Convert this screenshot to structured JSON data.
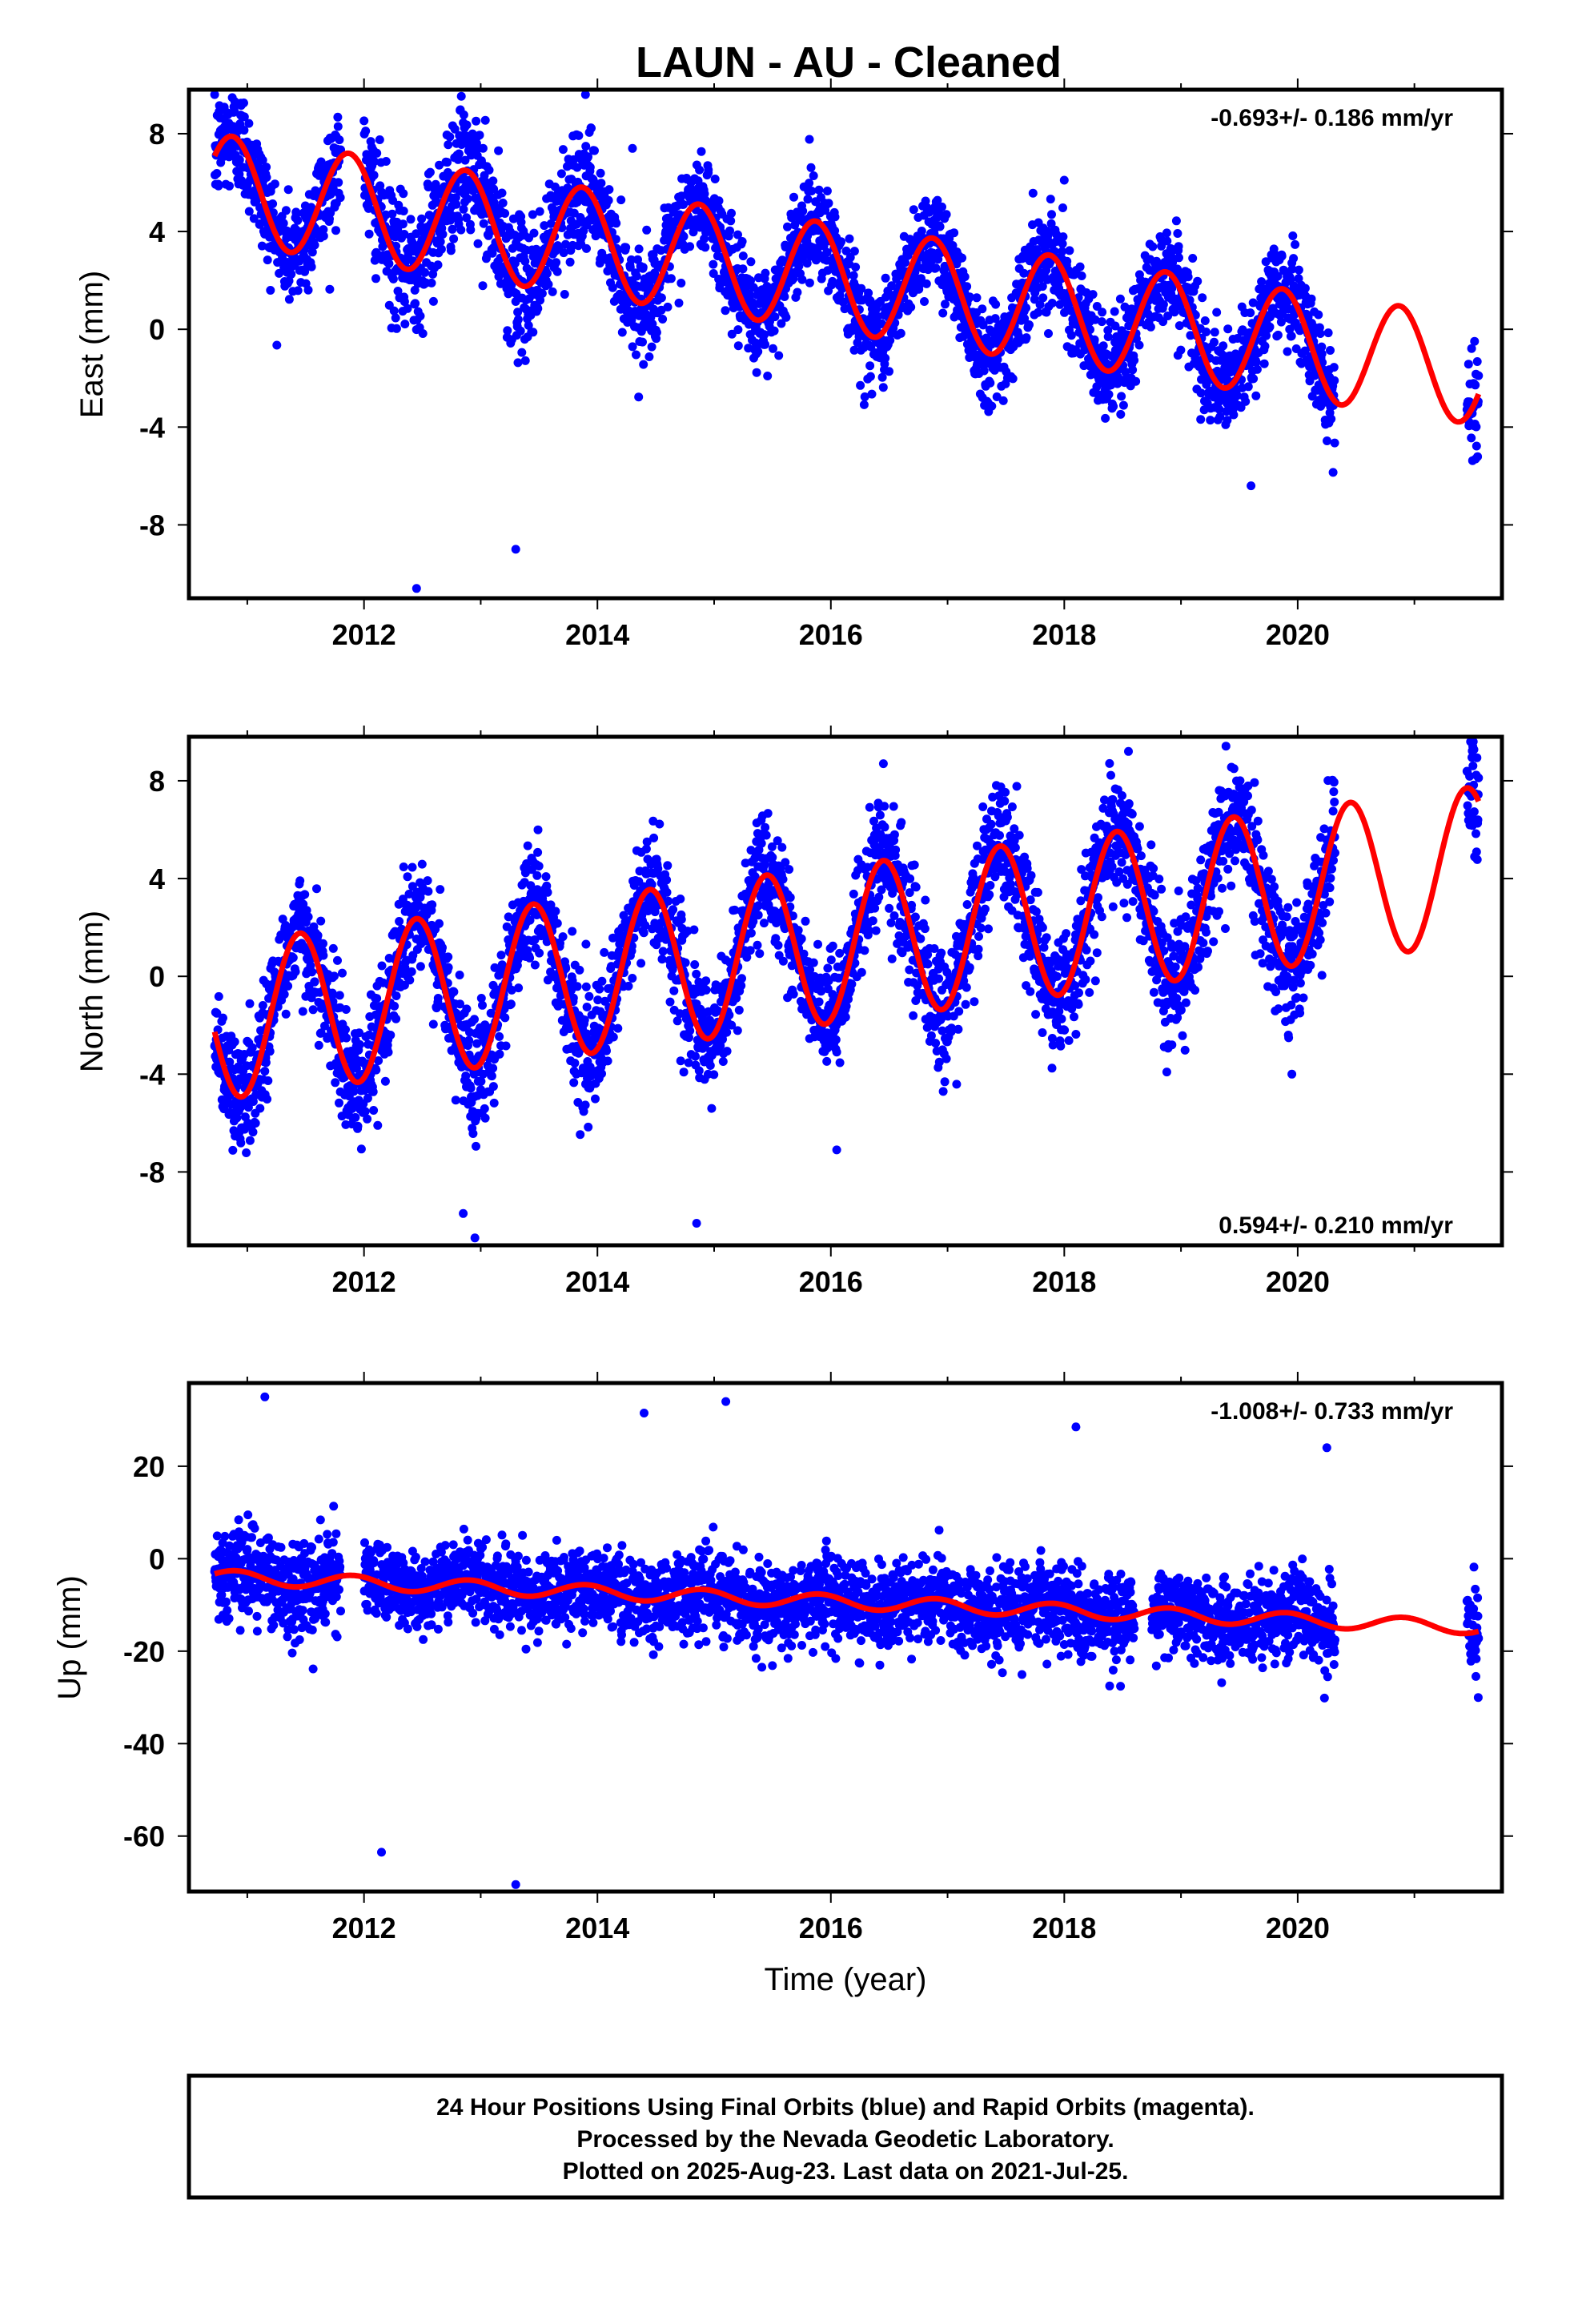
{
  "title": "LAUN  - AU - Cleaned",
  "colors": {
    "observations": "#0000ff",
    "model": "#ff0000",
    "axes": "#000000"
  },
  "caption": [
    "24 Hour Positions Using Final Orbits (blue) and Rapid Orbits (magenta).",
    "Processed by the Nevada Geodetic Laboratory.",
    "Plotted on 2025-Aug-23. Last data on 2021-Jul-25."
  ],
  "chart_data": [
    {
      "type": "scatter",
      "component": "east",
      "ylabel": "East (mm)",
      "xlabel": "",
      "rate_label": "-0.693+/- 0.186 mm/yr",
      "rate_position": "top-right",
      "xlim": [
        2010.5,
        2021.75
      ],
      "ylim": [
        -11.0,
        9.8
      ],
      "xticks": [
        2012,
        2014,
        2016,
        2018,
        2020
      ],
      "yticks": [
        -8,
        -4,
        0,
        4,
        8
      ],
      "series": [
        {
          "kind": "observations",
          "segments": [
            {
              "x0": 2010.72,
              "x1": 2011.8,
              "amp": 2.2,
              "off": -4.8,
              "trend": -0.693,
              "noise": 1.1,
              "gap": 0.0
            },
            {
              "x0": 2012.0,
              "x1": 2013.95,
              "amp": 2.2,
              "off": -10.0,
              "trend": -0.693,
              "noise": 1.3,
              "gap": 0.0
            },
            {
              "x0": 2013.95,
              "x1": 2020.32,
              "amp": 2.2,
              "off": -4.8,
              "trend": -0.693,
              "noise": 1.0,
              "gap": 0.0
            },
            {
              "x0": 2021.45,
              "x1": 2021.55,
              "amp": 2.2,
              "off": -4.8,
              "trend": -0.693,
              "noise": 1.0,
              "gap": 0.0
            }
          ],
          "outliers": [
            [
              2012.45,
              -10.6
            ],
            [
              2013.3,
              -9.0
            ],
            [
              2014.3,
              7.4
            ],
            [
              2018.0,
              6.1
            ],
            [
              2014.95,
              6.4
            ],
            [
              2019.6,
              -6.4
            ]
          ]
        },
        {
          "kind": "model",
          "name": "",
          "amp": 2.2,
          "phase": 2010.87,
          "off": 5.6,
          "trend": -0.693,
          "x0": 2010.72,
          "x1": 2021.55,
          "step": []
        }
      ]
    },
    {
      "type": "scatter",
      "component": "north",
      "ylabel": "North (mm)",
      "xlabel": "",
      "rate_label": "0.594+/- 0.210 mm/yr",
      "rate_position": "bottom-right",
      "xlim": [
        2010.5,
        2021.75
      ],
      "ylim": [
        -11.0,
        9.8
      ],
      "xticks": [
        2012,
        2014,
        2016,
        2018,
        2020
      ],
      "yticks": [
        -8,
        -4,
        0,
        4,
        8
      ],
      "series": [
        {
          "kind": "observations",
          "segments": [
            {
              "x0": 2010.72,
              "x1": 2020.32,
              "amp": 3.2,
              "off": -1.7,
              "trend": 0.594,
              "noise": 1.2,
              "gap": 0.0
            },
            {
              "x0": 2021.45,
              "x1": 2021.55,
              "amp": 3.2,
              "off": -1.7,
              "trend": 0.594,
              "noise": 1.2,
              "gap": 0.0
            }
          ],
          "outliers": [
            [
              2012.85,
              -9.7
            ],
            [
              2012.95,
              -10.7
            ],
            [
              2014.85,
              -10.1
            ],
            [
              2016.05,
              -7.1
            ],
            [
              2016.45,
              8.7
            ],
            [
              2018.55,
              9.2
            ],
            [
              2021.5,
              9.4
            ],
            [
              2019.95,
              -4.0
            ]
          ]
        },
        {
          "kind": "model",
          "name": "",
          "amp": 3.2,
          "phase": 2011.45,
          "off": -1.7,
          "trend": 0.594,
          "x0": 2010.72,
          "x1": 2021.55,
          "step": []
        }
      ]
    },
    {
      "type": "scatter",
      "component": "up",
      "ylabel": "Up (mm)",
      "xlabel": "Time (year)",
      "rate_label": "-1.008+/- 0.733 mm/yr",
      "rate_position": "top-right",
      "xlim": [
        2010.5,
        2021.75
      ],
      "ylim": [
        -72,
        38
      ],
      "xticks": [
        2012,
        2014,
        2016,
        2018,
        2020
      ],
      "yticks": [
        -60,
        -40,
        -20,
        0,
        20
      ],
      "series": [
        {
          "kind": "observations",
          "segments": [
            {
              "x0": 2010.72,
              "x1": 2011.8,
              "amp": 2.0,
              "off": 6.0,
              "trend": -1.008,
              "noise": 5.0,
              "gap": 0.0
            },
            {
              "x0": 2012.0,
              "x1": 2013.95,
              "amp": 1.5,
              "off": -46.0,
              "trend": -1.008,
              "noise": 4.0,
              "gap": 0.0
            },
            {
              "x0": 2013.95,
              "x1": 2018.6,
              "amp": 1.5,
              "off": 10.5,
              "trend": -1.008,
              "noise": 4.5,
              "gap": 0.0
            },
            {
              "x0": 2018.75,
              "x1": 2020.32,
              "amp": 1.5,
              "off": 10.5,
              "trend": -1.008,
              "noise": 4.5,
              "gap": 0.0
            },
            {
              "x0": 2021.45,
              "x1": 2021.55,
              "amp": 1.5,
              "off": 10.5,
              "trend": -1.008,
              "noise": 5.0,
              "gap": 0.0
            }
          ],
          "outliers": [
            [
              2011.15,
              35.0
            ],
            [
              2014.4,
              31.5
            ],
            [
              2015.1,
              34.0
            ],
            [
              2013.35,
              -15.5
            ],
            [
              2013.3,
              -70.5
            ],
            [
              2012.15,
              -63.5
            ],
            [
              2018.1,
              28.5
            ],
            [
              2020.25,
              24.0
            ]
          ]
        },
        {
          "kind": "model",
          "name": "",
          "amp": 1.5,
          "phase": 2010.9,
          "off": -4.2,
          "trend": -1.008,
          "x0": 2010.72,
          "x1": 2021.55,
          "step": []
        }
      ]
    }
  ]
}
